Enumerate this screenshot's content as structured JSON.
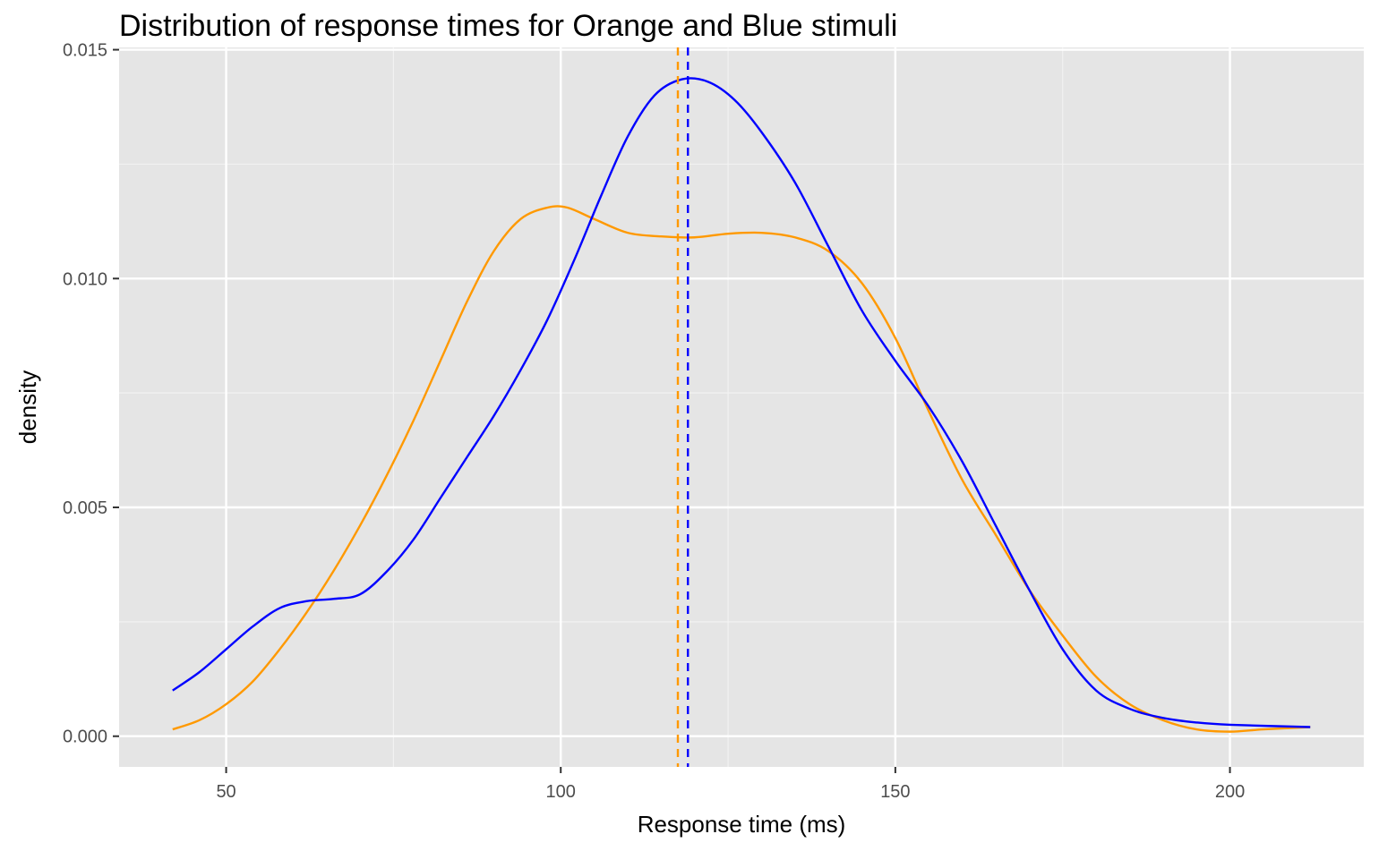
{
  "chart_data": {
    "type": "line",
    "title": "Distribution of response times for Orange and Blue stimuli",
    "xlabel": "Response time (ms)",
    "ylabel": "density",
    "xlim": [
      34,
      220
    ],
    "ylim": [
      -0.00067,
      0.01505
    ],
    "x_ticks": [
      50,
      100,
      150,
      200
    ],
    "x_tick_labels": [
      "50",
      "100",
      "150",
      "200"
    ],
    "y_ticks": [
      0,
      0.005,
      0.01,
      0.015
    ],
    "y_tick_labels": [
      "0.000",
      "0.005",
      "0.010",
      "0.015"
    ],
    "grid": true,
    "legend": "none",
    "series": [
      {
        "color": "#ff9900",
        "mean": 117.5,
        "points": [
          [
            42,
            0.00015
          ],
          [
            46,
            0.00035
          ],
          [
            50,
            0.0007
          ],
          [
            54,
            0.0012
          ],
          [
            58,
            0.0019
          ],
          [
            62,
            0.0027
          ],
          [
            66,
            0.0036
          ],
          [
            70,
            0.0046
          ],
          [
            74,
            0.0057
          ],
          [
            78,
            0.0069
          ],
          [
            82,
            0.0082
          ],
          [
            86,
            0.0095
          ],
          [
            90,
            0.0106
          ],
          [
            94,
            0.0113
          ],
          [
            98,
            0.01155
          ],
          [
            101,
            0.01155
          ],
          [
            105,
            0.0113
          ],
          [
            110,
            0.011
          ],
          [
            115,
            0.01092
          ],
          [
            120,
            0.0109
          ],
          [
            125,
            0.01098
          ],
          [
            130,
            0.011
          ],
          [
            135,
            0.0109
          ],
          [
            140,
            0.0106
          ],
          [
            145,
            0.0099
          ],
          [
            150,
            0.0087
          ],
          [
            155,
            0.0071
          ],
          [
            160,
            0.0056
          ],
          [
            165,
            0.0044
          ],
          [
            170,
            0.0032
          ],
          [
            175,
            0.0022
          ],
          [
            180,
            0.0013
          ],
          [
            185,
            0.0007
          ],
          [
            190,
            0.00035
          ],
          [
            195,
            0.00015
          ],
          [
            200,
            0.0001
          ],
          [
            205,
            0.00015
          ],
          [
            212,
            0.0002
          ]
        ]
      },
      {
        "color": "#0000ff",
        "mean": 119,
        "points": [
          [
            42,
            0.001
          ],
          [
            46,
            0.0014
          ],
          [
            50,
            0.0019
          ],
          [
            54,
            0.0024
          ],
          [
            58,
            0.0028
          ],
          [
            62,
            0.00295
          ],
          [
            66,
            0.003
          ],
          [
            70,
            0.0031
          ],
          [
            74,
            0.0036
          ],
          [
            78,
            0.0043
          ],
          [
            82,
            0.0052
          ],
          [
            86,
            0.0061
          ],
          [
            90,
            0.007
          ],
          [
            94,
            0.008
          ],
          [
            98,
            0.0091
          ],
          [
            102,
            0.0104
          ],
          [
            106,
            0.0118
          ],
          [
            110,
            0.0131
          ],
          [
            114,
            0.014
          ],
          [
            118,
            0.01435
          ],
          [
            122,
            0.0143
          ],
          [
            126,
            0.0139
          ],
          [
            130,
            0.0132
          ],
          [
            135,
            0.0121
          ],
          [
            140,
            0.0107
          ],
          [
            145,
            0.0093
          ],
          [
            150,
            0.0082
          ],
          [
            155,
            0.0072
          ],
          [
            160,
            0.006
          ],
          [
            165,
            0.0046
          ],
          [
            170,
            0.0032
          ],
          [
            175,
            0.0019
          ],
          [
            180,
            0.001
          ],
          [
            185,
            0.0006
          ],
          [
            190,
            0.0004
          ],
          [
            195,
            0.0003
          ],
          [
            200,
            0.00025
          ],
          [
            212,
            0.0002
          ]
        ]
      }
    ]
  }
}
